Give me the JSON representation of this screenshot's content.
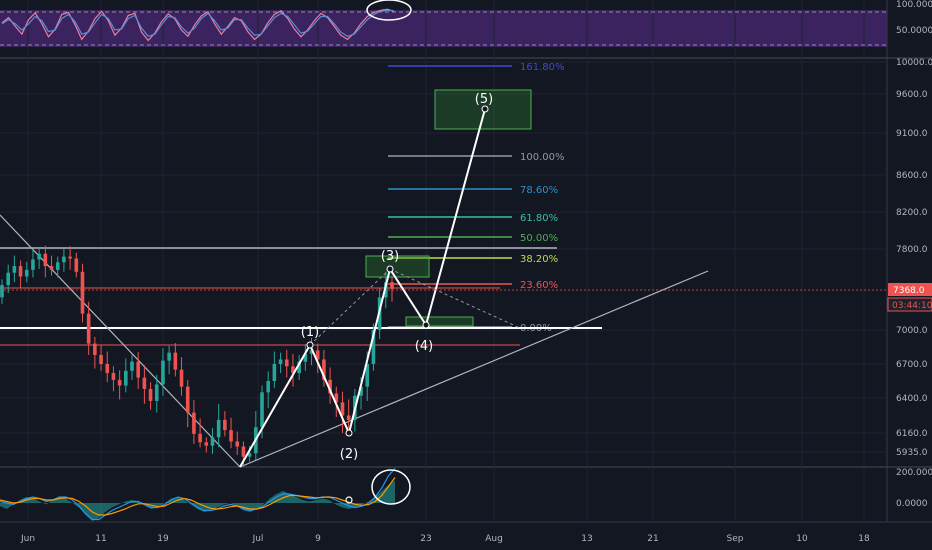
{
  "chart_data": [
    {
      "type": "line",
      "panel": "rsi",
      "title": "",
      "y_ticks": [
        "100.0000",
        "50.0000"
      ],
      "ylim": [
        0,
        100
      ],
      "band": [
        30,
        70
      ],
      "series": [
        {
          "values": [
            62,
            72,
            55,
            40,
            68,
            81,
            60,
            35,
            50,
            78,
            82,
            58,
            30,
            46,
            70,
            84,
            66,
            38,
            52,
            76,
            80,
            44,
            28,
            42,
            64,
            79,
            70,
            48,
            36,
            58,
            75,
            83,
            60,
            40,
            55,
            72,
            66,
            45,
            30,
            40,
            62,
            78,
            85,
            70,
            50,
            35,
            48,
            66,
            80,
            72,
            55,
            38,
            30,
            42,
            60,
            74,
            82,
            86,
            88,
            84
          ]
        },
        {
          "values": [
            60,
            68,
            60,
            48,
            60,
            74,
            66,
            45,
            48,
            70,
            78,
            64,
            40,
            44,
            62,
            78,
            70,
            48,
            50,
            70,
            76,
            52,
            36,
            40,
            58,
            74,
            72,
            54,
            42,
            52,
            70,
            80,
            66,
            48,
            52,
            68,
            68,
            52,
            38,
            40,
            56,
            72,
            80,
            74,
            58,
            42,
            46,
            60,
            74,
            74,
            60,
            44,
            36,
            40,
            54,
            68,
            78,
            84,
            86,
            85
          ]
        }
      ]
    },
    {
      "type": "candlestick",
      "panel": "price",
      "title": "",
      "x_tick_labels": [
        "Jun",
        "11",
        "19",
        "Jul",
        "9",
        "23",
        "Aug",
        "13",
        "21",
        "Sep",
        "10",
        "18"
      ],
      "y_ticks": [
        10000.0,
        9600.0,
        9100.0,
        8600.0,
        8200.0,
        7800.0,
        7368.0,
        7000.0,
        6700.0,
        6400.0,
        6160.0,
        5935.0
      ],
      "y_tick_labels": [
        "10000.0",
        "9600.0",
        "9100.0",
        "8600.0",
        "8200.0",
        "7800.0",
        "7368.0",
        "7000.0",
        "6700.0",
        "6400.0",
        "6160.0",
        "5935.0"
      ],
      "ylim": [
        5820,
        10080
      ],
      "closes": [
        7420,
        7550,
        7620,
        7510,
        7580,
        7690,
        7750,
        7620,
        7580,
        7660,
        7720,
        7700,
        7560,
        7150,
        6880,
        6780,
        6700,
        6620,
        6560,
        6510,
        6640,
        6720,
        6580,
        6480,
        6380,
        6520,
        6730,
        6800,
        6650,
        6500,
        6300,
        6150,
        6050,
        6010,
        6110,
        6250,
        6180,
        6060,
        6000,
        5880,
        5920,
        6200,
        6450,
        6550,
        6700,
        6740,
        6680,
        6620,
        6720,
        6790,
        6820,
        6740,
        6560,
        6440,
        6370,
        6280,
        6250,
        6420,
        6500,
        6700,
        7000,
        7300,
        7450,
        7380
      ],
      "fib_levels": [
        {
          "label": "161.80%",
          "price": 10000,
          "color": "#3d4bcf"
        },
        {
          "label": "100.00%",
          "price": 8800,
          "color": "#9598a1"
        },
        {
          "label": "78.60%",
          "price": 8420,
          "color": "#2f8fc4"
        },
        {
          "label": "61.80%",
          "price": 8110,
          "color": "#30c2a8"
        },
        {
          "label": "50.00%",
          "price": 7900,
          "color": "#4caf50"
        },
        {
          "label": "38.20%",
          "price": 7700,
          "color": "#c6d94a"
        },
        {
          "label": "23.60%",
          "price": 7400,
          "color": "#ef5350"
        },
        {
          "label": "0.00%",
          "price": 7000,
          "color": "#9598a1"
        }
      ],
      "waves": [
        {
          "label": "(1)",
          "price": 6850
        },
        {
          "label": "(2)",
          "price": 6150
        },
        {
          "label": "(3)",
          "price": 7550
        },
        {
          "label": "(4)",
          "price": 7050
        },
        {
          "label": "(5)",
          "price": 9430
        }
      ],
      "price_tags": [
        {
          "label": "7368.0",
          "color": "#ef5350"
        },
        {
          "label": "03:44:10",
          "color": "#ef5350"
        }
      ]
    },
    {
      "type": "area",
      "panel": "macd",
      "title": "",
      "y_tick_labels": [
        "200.0000",
        "0.0000"
      ],
      "ylim": [
        -200,
        260
      ],
      "histogram": [
        -20,
        -40,
        -10,
        20,
        40,
        30,
        10,
        -10,
        20,
        40,
        30,
        0,
        -30,
        -80,
        -120,
        -100,
        -60,
        -30,
        -10,
        10,
        20,
        10,
        -20,
        -40,
        -30,
        0,
        30,
        40,
        20,
        -10,
        -40,
        -60,
        -50,
        -30,
        -10,
        0,
        -20,
        -50,
        -60,
        -40,
        -10,
        30,
        60,
        80,
        60,
        40,
        20,
        10,
        20,
        30,
        20,
        -10,
        -30,
        -40,
        -30,
        -10,
        10,
        40,
        80,
        120,
        150
      ],
      "macd": [
        10,
        0,
        -10,
        10,
        30,
        40,
        30,
        10,
        20,
        40,
        40,
        20,
        -20,
        -70,
        -110,
        -110,
        -80,
        -50,
        -30,
        -10,
        10,
        10,
        -10,
        -30,
        -30,
        -10,
        20,
        40,
        30,
        0,
        -30,
        -50,
        -50,
        -40,
        -20,
        -10,
        -20,
        -40,
        -50,
        -40,
        -20,
        10,
        40,
        60,
        60,
        50,
        40,
        30,
        30,
        40,
        40,
        20,
        0,
        -20,
        -30,
        -20,
        0,
        40,
        100,
        180,
        230
      ],
      "signal": [
        20,
        10,
        0,
        5,
        20,
        30,
        30,
        20,
        20,
        30,
        35,
        30,
        10,
        -20,
        -60,
        -80,
        -80,
        -70,
        -55,
        -40,
        -20,
        -5,
        -5,
        -15,
        -25,
        -20,
        0,
        20,
        30,
        20,
        0,
        -20,
        -35,
        -40,
        -35,
        -25,
        -20,
        -30,
        -40,
        -40,
        -30,
        -10,
        15,
        35,
        50,
        50,
        45,
        40,
        35,
        38,
        40,
        35,
        20,
        5,
        -10,
        -15,
        -10,
        10,
        50,
        110,
        170
      ]
    }
  ]
}
